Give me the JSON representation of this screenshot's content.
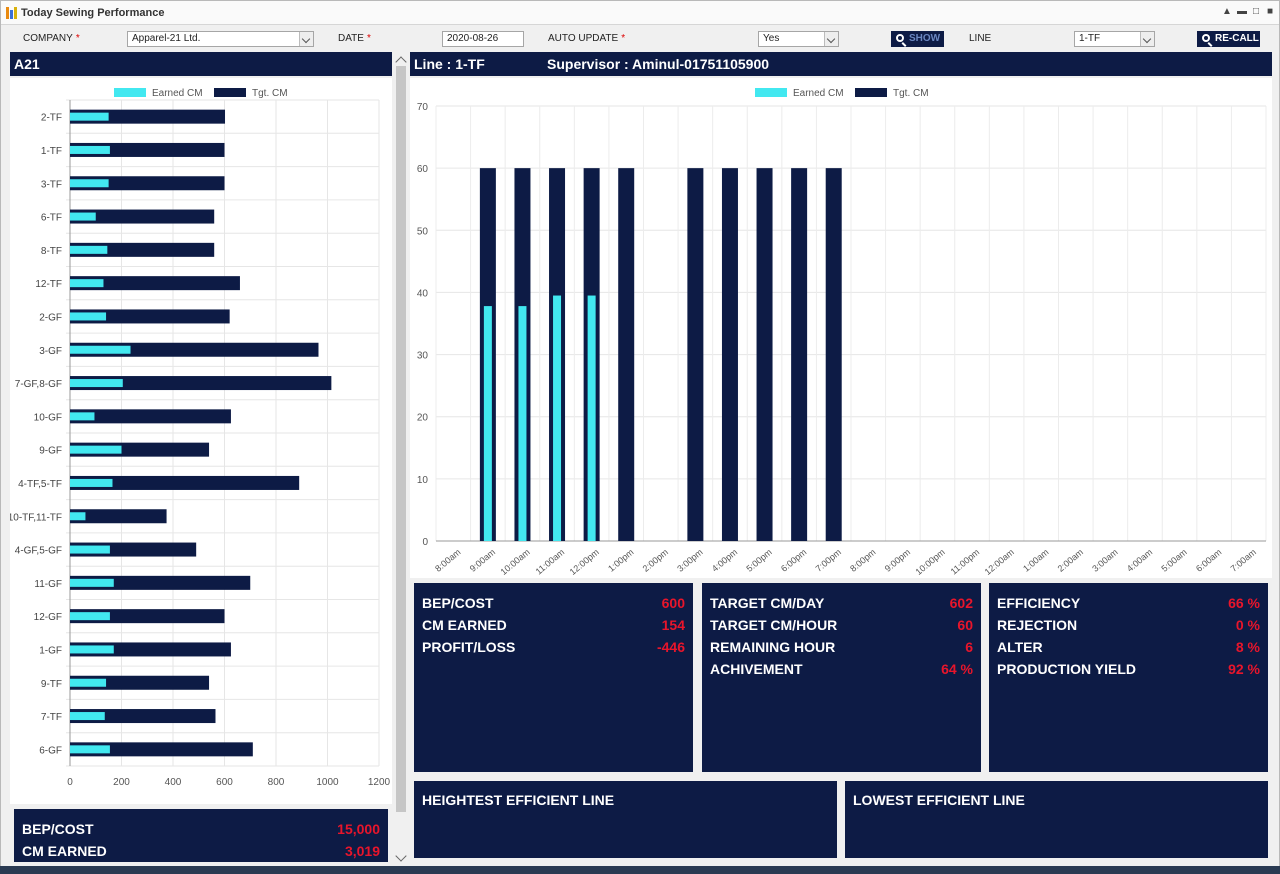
{
  "window": {
    "title": "Today Sewing Performance"
  },
  "toolbar": {
    "company_label": "COMPANY",
    "company_value": "Apparel-21 Ltd.",
    "date_label": "DATE",
    "date_value": "2020-08-26",
    "auto_update_label": "AUTO UPDATE",
    "auto_update_value": "Yes",
    "show_label": "SHOW",
    "line_label": "LINE",
    "line_value": "1-TF",
    "recall_label": "RE-CALL",
    "required_mark": "*"
  },
  "left_panel": {
    "title": "A21",
    "summary": [
      {
        "label": "BEP/COST",
        "value": "15,000"
      },
      {
        "label": "CM EARNED",
        "value": "3,019"
      }
    ]
  },
  "right_panel": {
    "line_title": "Line : 1-TF",
    "supervisor": "Supervisor : Aminul-01751105900",
    "cards": [
      [
        {
          "label": "BEP/COST",
          "value": "600"
        },
        {
          "label": "CM EARNED",
          "value": "154"
        },
        {
          "label": "PROFIT/LOSS",
          "value": "-446"
        }
      ],
      [
        {
          "label": "TARGET CM/DAY",
          "value": "602"
        },
        {
          "label": "TARGET CM/HOUR",
          "value": "60"
        },
        {
          "label": "REMAINING HOUR",
          "value": "6"
        },
        {
          "label": "ACHIVEMENT",
          "value": "64 %"
        }
      ],
      [
        {
          "label": "EFFICIENCY",
          "value": "66 %"
        },
        {
          "label": "REJECTION",
          "value": "0 %"
        },
        {
          "label": "ALTER",
          "value": "8 %"
        },
        {
          "label": "PRODUCTION YIELD",
          "value": "92 %"
        }
      ]
    ],
    "highest_label": "HEIGHTEST EFFICIENT LINE",
    "lowest_label": "LOWEST EFFICIENT LINE"
  },
  "colors": {
    "earned": "#42e8f0",
    "target": "#0d1b45",
    "value_red": "#e8152b"
  },
  "chart_data": [
    {
      "type": "bar",
      "orientation": "horizontal",
      "categories": [
        "2-TF",
        "1-TF",
        "3-TF",
        "6-TF",
        "8-TF",
        "12-TF",
        "2-GF",
        "3-GF",
        "7-GF,8-GF",
        "10-GF",
        "9-GF",
        "4-TF,5-TF",
        "10-TF,11-TF",
        "4-GF,5-GF",
        "11-GF",
        "12-GF",
        "1-GF",
        "9-TF",
        "7-TF",
        "6-GF"
      ],
      "series": [
        {
          "name": "Earned CM",
          "values": [
            150,
            155,
            150,
            100,
            145,
            130,
            140,
            235,
            205,
            95,
            200,
            165,
            60,
            155,
            170,
            155,
            170,
            140,
            135,
            155
          ]
        },
        {
          "name": "Tgt. CM",
          "values": [
            602,
            600,
            600,
            560,
            560,
            660,
            620,
            965,
            1015,
            625,
            540,
            890,
            375,
            490,
            700,
            600,
            625,
            540,
            565,
            710
          ]
        }
      ],
      "xlim": [
        0,
        1200
      ],
      "xticks": [
        0,
        200,
        400,
        600,
        800,
        1000,
        1200
      ],
      "grid": true,
      "legend": "top-center"
    },
    {
      "type": "bar",
      "categories": [
        "8:00am",
        "9:00am",
        "10:00am",
        "11:00am",
        "12:00pm",
        "1:00pm",
        "2:00pm",
        "3:00pm",
        "4:00pm",
        "5:00pm",
        "6:00pm",
        "7:00pm",
        "8:00pm",
        "9:00pm",
        "10:00pm",
        "11:00pm",
        "12:00am",
        "1:00am",
        "2:00am",
        "3:00am",
        "4:00am",
        "5:00am",
        "6:00am",
        "7:00am"
      ],
      "series": [
        {
          "name": "Earned CM",
          "values": [
            0,
            37.8,
            37.8,
            39.5,
            39.5,
            0,
            0,
            0,
            0,
            0,
            0,
            0,
            0,
            0,
            0,
            0,
            0,
            0,
            0,
            0,
            0,
            0,
            0,
            0
          ]
        },
        {
          "name": "Tgt. CM",
          "values": [
            0,
            60,
            60,
            60,
            60,
            60,
            0,
            60,
            60,
            60,
            60,
            60,
            0,
            0,
            0,
            0,
            0,
            0,
            0,
            0,
            0,
            0,
            0,
            0
          ]
        }
      ],
      "ylim": [
        0,
        70
      ],
      "yticks": [
        0,
        10,
        20,
        30,
        40,
        50,
        60,
        70
      ],
      "grid": true,
      "legend": "top-center"
    }
  ]
}
